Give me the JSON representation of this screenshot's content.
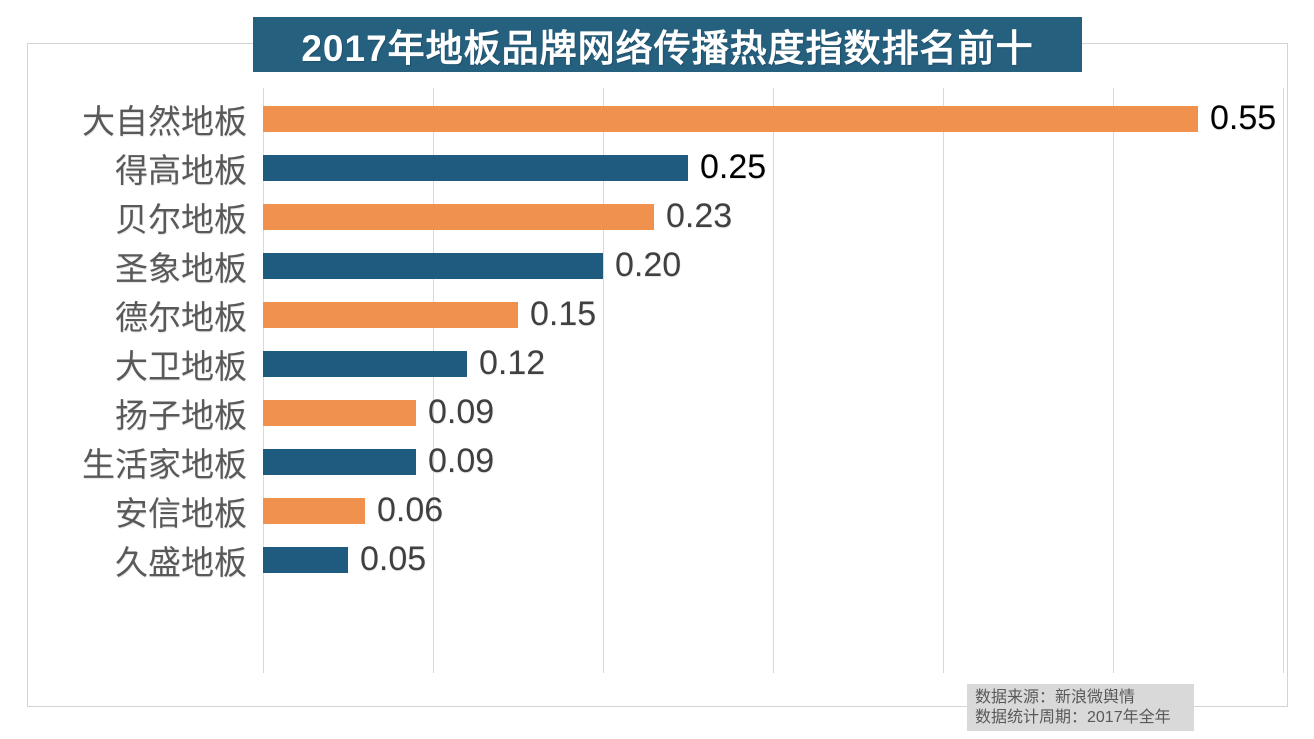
{
  "title": {
    "text": "2017年地板品牌网络传播热度指数排名前十",
    "bg_color": "#26607F",
    "text_color": "#FFFFFF"
  },
  "chart_data": {
    "type": "bar",
    "orientation": "horizontal",
    "title": "2017年地板品牌网络传播热度指数排名前十",
    "categories": [
      "大自然地板",
      "得高地板",
      "贝尔地板",
      "圣象地板",
      "德尔地板",
      "大卫地板",
      "扬子地板",
      "生活家地板",
      "安信地板",
      "久盛地板"
    ],
    "values": [
      0.55,
      0.25,
      0.23,
      0.2,
      0.15,
      0.12,
      0.09,
      0.09,
      0.06,
      0.05
    ],
    "value_labels": [
      "0.55",
      "0.25",
      "0.23",
      "0.20",
      "0.15",
      "0.12",
      "0.09",
      "0.09",
      "0.06",
      "0.05"
    ],
    "bar_colors": [
      "#F0924D",
      "#1F5B7E",
      "#F0924D",
      "#1F5B7E",
      "#F0924D",
      "#1F5B7E",
      "#F0924D",
      "#1F5B7E",
      "#F0924D",
      "#1F5B7E"
    ],
    "value_label_colors": [
      "#000000",
      "#000000",
      "#404040",
      "#404040",
      "#404040",
      "#404040",
      "#404040",
      "#404040",
      "#404040",
      "#404040"
    ],
    "xlabel": "",
    "ylabel": "",
    "xlim": [
      0,
      0.6
    ],
    "gridline_interval": 0.1,
    "grid": true,
    "legend": false,
    "gridline_color": "#D9D9D9",
    "category_text_color": "#595959"
  },
  "footer": {
    "source_line1": "数据来源：新浪微舆情",
    "source_line2": "数据统计周期：2017年全年",
    "bg_color": "#D9D9D9",
    "text_color": "#595959"
  }
}
